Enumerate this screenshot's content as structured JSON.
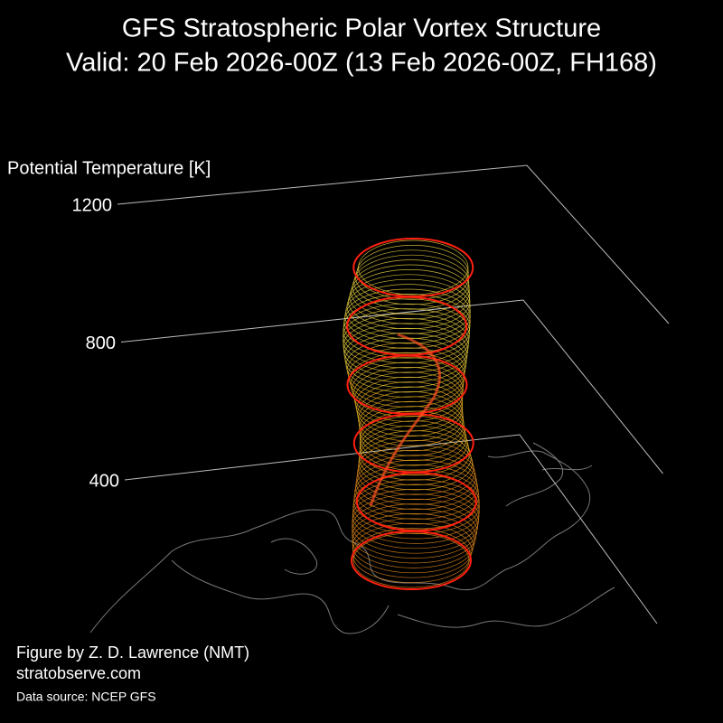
{
  "chart_data": {
    "type": "vortex3d",
    "title": "GFS Stratospheric Polar Vortex Structure",
    "subtitle": "Valid: 20 Feb 2026-00Z  (13 Feb 2026-00Z, FH168)",
    "zlabel": "Potential Temperature [K]",
    "zlim": [
      400,
      1200
    ],
    "zticks": [
      400,
      800,
      1200
    ],
    "annotations": [
      "Figure by Z. D. Lawrence (NMT)",
      "stratobserve.com",
      "Data source: NCEP GFS"
    ]
  }
}
